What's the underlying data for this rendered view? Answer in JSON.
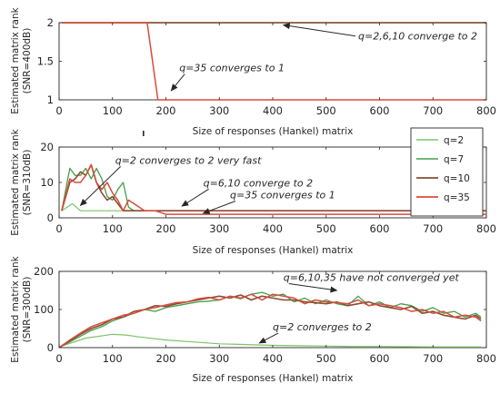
{
  "colors": {
    "q2": "#7cc36c",
    "q7": "#43a047",
    "q10": "#8a4b33",
    "q35": "#d84c3e",
    "axis": "#262626"
  },
  "legend": [
    "q=2",
    "q=7",
    "q=10",
    "q=35"
  ],
  "chart_data": [
    {
      "type": "line",
      "xlabel": "Size of responses (Hankel) matrix",
      "ylabel": "Estimated matrix rank",
      "ylabel2": "(SNR=400dB)",
      "xlim": [
        0,
        800
      ],
      "ylim": [
        1,
        2
      ],
      "xticks": [
        "0",
        "100",
        "200",
        "300",
        "400",
        "500",
        "600",
        "700",
        "800"
      ],
      "yticks": [
        "1",
        "1.5",
        "2"
      ],
      "series": [
        {
          "name": "q=2",
          "x": [
            5,
            800
          ],
          "y": [
            2,
            2
          ]
        },
        {
          "name": "q=7",
          "x": [
            5,
            800
          ],
          "y": [
            2,
            2
          ]
        },
        {
          "name": "q=10",
          "x": [
            5,
            800
          ],
          "y": [
            2,
            2
          ]
        },
        {
          "name": "q=35",
          "x": [
            5,
            165,
            185,
            800
          ],
          "y": [
            2,
            2,
            1,
            1
          ]
        }
      ],
      "annotations": [
        {
          "text": "q=2,6,10 converge to 2",
          "at": [
            560,
            1.78
          ],
          "arrow_to": [
            420,
            1.97
          ]
        },
        {
          "text": "q=35 converges to 1",
          "at": [
            225,
            1.37
          ],
          "arrow_to": [
            210,
            1.12
          ]
        }
      ]
    },
    {
      "type": "line",
      "xlabel": "Size of responses (Hankel) matrix",
      "ylabel": "Estimated matrix rank",
      "ylabel2": "(SNR=310dB)",
      "xlim": [
        0,
        800
      ],
      "ylim": [
        0,
        20
      ],
      "xticks": [
        "0",
        "100",
        "200",
        "300",
        "400",
        "500",
        "600",
        "700",
        "800"
      ],
      "yticks": [
        "0",
        "10",
        "20"
      ],
      "series": [
        {
          "name": "q=2",
          "x": [
            5,
            25,
            40,
            60,
            80,
            100,
            120,
            800
          ],
          "y": [
            2,
            4,
            2,
            2,
            2,
            2,
            2,
            2
          ]
        },
        {
          "name": "q=7",
          "x": [
            5,
            20,
            30,
            40,
            50,
            60,
            70,
            80,
            90,
            100,
            110,
            120,
            130,
            140,
            150,
            160,
            180,
            200,
            800
          ],
          "y": [
            2,
            14,
            12,
            12,
            14,
            11,
            14,
            11,
            6,
            5,
            8,
            10,
            3,
            2,
            2,
            2,
            2,
            2,
            2
          ]
        },
        {
          "name": "q=10",
          "x": [
            5,
            20,
            30,
            40,
            50,
            60,
            70,
            80,
            90,
            100,
            110,
            120,
            140,
            160,
            180,
            800
          ],
          "y": [
            2,
            10,
            11,
            13,
            12,
            15,
            10,
            7,
            5,
            6,
            4,
            2,
            2,
            2,
            2,
            2
          ]
        },
        {
          "name": "q=35",
          "x": [
            5,
            20,
            30,
            40,
            50,
            60,
            70,
            80,
            90,
            100,
            110,
            120,
            130,
            140,
            150,
            160,
            170,
            180,
            200,
            220,
            240,
            800
          ],
          "y": [
            2,
            11,
            10,
            10,
            12,
            15,
            10,
            8,
            10,
            7,
            5,
            2,
            5,
            4,
            3,
            2,
            2,
            2,
            1,
            1,
            1,
            1
          ]
        }
      ],
      "annotations": [
        {
          "text": "q=2 converges to 2 very fast",
          "at": [
            105,
            15.3
          ],
          "arrow_to": [
            40,
            3.5
          ]
        },
        {
          "text": "q=6,10 converge to 2",
          "at": [
            270,
            8.9
          ],
          "arrow_to": [
            230,
            3.3
          ]
        },
        {
          "text": "q=35 converges to 1",
          "at": [
            320,
            5.5
          ],
          "arrow_to": [
            270,
            1.3
          ]
        }
      ]
    },
    {
      "type": "line",
      "xlabel": "Size of responses (Hankel) matrix",
      "ylabel": "Estimated matrix rank",
      "ylabel2": "(SNR=300dB)",
      "xlim": [
        0,
        800
      ],
      "ylim": [
        0,
        200
      ],
      "xticks": [
        "0",
        "100",
        "200",
        "300",
        "400",
        "500",
        "600",
        "700",
        "800"
      ],
      "yticks": [
        "0",
        "100",
        "200"
      ],
      "series": [
        {
          "name": "q=2",
          "x": [
            0,
            50,
            100,
            125,
            150,
            200,
            250,
            300,
            350,
            400,
            450,
            500,
            550,
            600,
            700,
            790
          ],
          "y": [
            2,
            25,
            35,
            33,
            28,
            20,
            15,
            10,
            8,
            6,
            5,
            4,
            3,
            3,
            2,
            2
          ]
        },
        {
          "name": "q=7",
          "x": [
            0,
            20,
            40,
            60,
            80,
            100,
            120,
            140,
            160,
            180,
            200,
            220,
            240,
            260,
            280,
            300,
            320,
            340,
            360,
            380,
            400,
            420,
            440,
            460,
            480,
            500,
            520,
            540,
            560,
            580,
            600,
            620,
            640,
            660,
            680,
            700,
            720,
            740,
            760,
            780,
            790
          ],
          "y": [
            0,
            15,
            30,
            45,
            55,
            70,
            80,
            90,
            100,
            95,
            105,
            110,
            115,
            120,
            122,
            125,
            135,
            128,
            140,
            145,
            135,
            140,
            120,
            130,
            115,
            125,
            115,
            110,
            135,
            110,
            120,
            105,
            115,
            110,
            95,
            105,
            90,
            95,
            80,
            90,
            80
          ]
        },
        {
          "name": "q=10",
          "x": [
            0,
            20,
            40,
            60,
            80,
            100,
            120,
            140,
            160,
            180,
            200,
            220,
            240,
            260,
            280,
            300,
            320,
            340,
            360,
            380,
            400,
            420,
            440,
            460,
            480,
            500,
            520,
            540,
            560,
            580,
            600,
            620,
            640,
            660,
            680,
            700,
            720,
            740,
            760,
            780,
            790
          ],
          "y": [
            0,
            18,
            35,
            50,
            60,
            75,
            80,
            95,
            100,
            110,
            108,
            115,
            120,
            125,
            130,
            135,
            130,
            138,
            125,
            135,
            130,
            125,
            125,
            120,
            118,
            115,
            120,
            110,
            115,
            120,
            110,
            105,
            100,
            108,
            90,
            95,
            85,
            80,
            75,
            85,
            75
          ]
        },
        {
          "name": "q=35",
          "x": [
            0,
            20,
            40,
            60,
            80,
            100,
            120,
            140,
            160,
            180,
            200,
            220,
            240,
            260,
            280,
            300,
            320,
            340,
            360,
            380,
            400,
            420,
            440,
            460,
            480,
            500,
            520,
            540,
            560,
            580,
            600,
            620,
            640,
            660,
            680,
            700,
            720,
            740,
            760,
            780,
            790
          ],
          "y": [
            0,
            20,
            38,
            55,
            65,
            75,
            85,
            90,
            100,
            105,
            112,
            118,
            120,
            128,
            132,
            125,
            135,
            130,
            140,
            125,
            140,
            135,
            130,
            115,
            125,
            120,
            118,
            115,
            125,
            110,
            115,
            110,
            105,
            95,
            100,
            90,
            95,
            80,
            85,
            80,
            70
          ]
        }
      ],
      "annotations": [
        {
          "text": "q=6,10,35 have not converged yet",
          "at": [
            420,
            175
          ],
          "arrow_to": [
            520,
            150
          ]
        },
        {
          "text": "q=2 converges to 2",
          "at": [
            400,
            45
          ],
          "arrow_to": [
            375,
            12
          ]
        }
      ]
    }
  ]
}
